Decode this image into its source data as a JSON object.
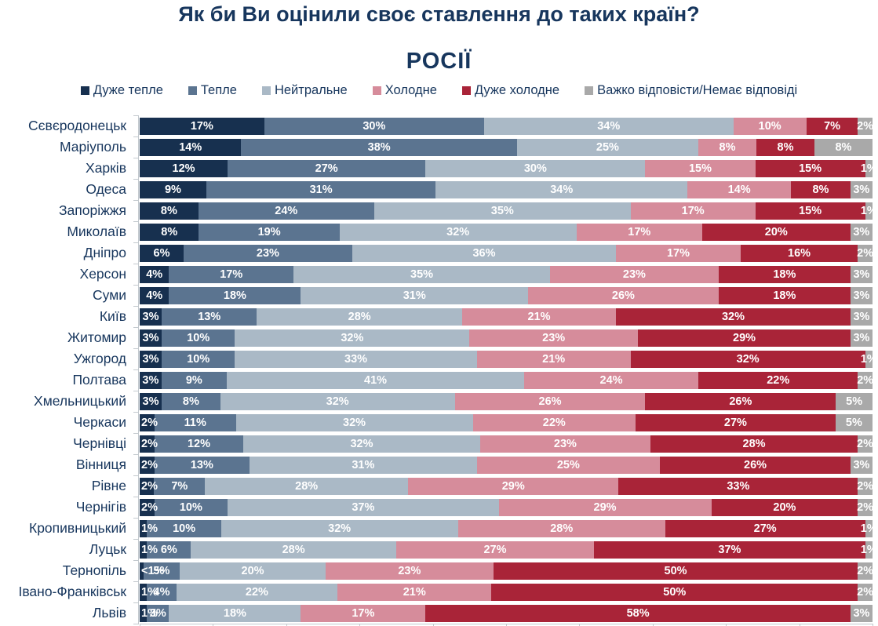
{
  "title": "Як би Ви оцінили своє ставлення до таких країн?",
  "subtitle": "РОСІЇ",
  "colors": {
    "title_text": "#17365d",
    "axis": "#c3c9ce",
    "bar_value_text": "#ffffff"
  },
  "chart_data": {
    "type": "bar",
    "orientation": "horizontal-stacked",
    "value_unit": "%",
    "xlim": [
      0,
      100
    ],
    "legend_position": "top",
    "grid": false,
    "categories": [
      "Сєвєродонецьк",
      "Маріуполь",
      "Харків",
      "Одеса",
      "Запоріжжя",
      "Миколаїв",
      "Дніпро",
      "Херсон",
      "Суми",
      "Київ",
      "Житомир",
      "Ужгород",
      "Полтава",
      "Хмельницький",
      "Черкаси",
      "Чернівці",
      "Вінниця",
      "Рівне",
      "Чернігів",
      "Кропивницький",
      "Луцьк",
      "Тернопіль",
      "Івано-Франківськ",
      "Львів"
    ],
    "series": [
      {
        "name": "Дуже тепле",
        "color": "#17304f",
        "values": [
          17,
          14,
          12,
          9,
          8,
          8,
          6,
          4,
          4,
          3,
          3,
          3,
          3,
          3,
          2,
          2,
          2,
          2,
          2,
          1,
          1,
          0.5,
          1,
          1
        ],
        "labels": [
          "17%",
          "14%",
          "12%",
          "9%",
          "8%",
          "8%",
          "6%",
          "4%",
          "4%",
          "3%",
          "3%",
          "3%",
          "3%",
          "3%",
          "2%",
          "2%",
          "2%",
          "2%",
          "2%",
          "1%",
          "1%",
          "<1%",
          "1%",
          "1%"
        ]
      },
      {
        "name": "Тепле",
        "color": "#5b7490",
        "values": [
          30,
          38,
          27,
          31,
          24,
          19,
          23,
          17,
          18,
          13,
          10,
          10,
          9,
          8,
          11,
          12,
          13,
          7,
          10,
          10,
          6,
          5,
          4,
          3
        ],
        "labels": [
          "30%",
          "38%",
          "27%",
          "31%",
          "24%",
          "19%",
          "23%",
          "17%",
          "18%",
          "13%",
          "10%",
          "10%",
          "9%",
          "8%",
          "11%",
          "12%",
          "13%",
          "7%",
          "10%",
          "10%",
          "6%",
          "5%",
          "4%",
          "3%"
        ]
      },
      {
        "name": "Нейтральне",
        "color": "#aab9c6",
        "values": [
          34,
          25,
          30,
          34,
          35,
          32,
          36,
          35,
          31,
          28,
          32,
          33,
          41,
          32,
          32,
          32,
          31,
          28,
          37,
          32,
          28,
          20,
          22,
          18
        ],
        "labels": [
          "34%",
          "25%",
          "30%",
          "34%",
          "35%",
          "32%",
          "36%",
          "35%",
          "31%",
          "28%",
          "32%",
          "33%",
          "41%",
          "32%",
          "32%",
          "32%",
          "31%",
          "28%",
          "37%",
          "32%",
          "28%",
          "20%",
          "22%",
          "18%"
        ]
      },
      {
        "name": "Холодне",
        "color": "#d68c9b",
        "values": [
          10,
          8,
          15,
          14,
          17,
          17,
          17,
          23,
          26,
          21,
          23,
          21,
          24,
          26,
          22,
          23,
          25,
          29,
          29,
          28,
          27,
          23,
          21,
          17
        ],
        "labels": [
          "10%",
          "8%",
          "15%",
          "14%",
          "17%",
          "17%",
          "17%",
          "23%",
          "26%",
          "21%",
          "23%",
          "21%",
          "24%",
          "26%",
          "22%",
          "23%",
          "25%",
          "29%",
          "29%",
          "28%",
          "27%",
          "23%",
          "21%",
          "17%"
        ]
      },
      {
        "name": "Дуже холодне",
        "color": "#a92438",
        "values": [
          7,
          8,
          15,
          8,
          15,
          20,
          16,
          18,
          18,
          32,
          29,
          32,
          22,
          26,
          27,
          28,
          26,
          33,
          20,
          27,
          37,
          50,
          50,
          58
        ],
        "labels": [
          "7%",
          "8%",
          "15%",
          "8%",
          "15%",
          "20%",
          "16%",
          "18%",
          "18%",
          "32%",
          "29%",
          "32%",
          "22%",
          "26%",
          "27%",
          "28%",
          "26%",
          "33%",
          "20%",
          "27%",
          "37%",
          "50%",
          "50%",
          "58%"
        ]
      },
      {
        "name": "Важко відповісти/Немає відповіді",
        "color": "#a9a9a9",
        "values": [
          2,
          8,
          1,
          3,
          1,
          3,
          2,
          3,
          3,
          3,
          3,
          1,
          2,
          5,
          5,
          2,
          3,
          2,
          2,
          1,
          1,
          2,
          2,
          3
        ],
        "labels": [
          "2%",
          "8%",
          "1%",
          "3%",
          "1%",
          "3%",
          "2%",
          "3%",
          "3%",
          "3%",
          "3%",
          "1%",
          "2%",
          "5%",
          "5%",
          "2%",
          "3%",
          "2%",
          "2%",
          "1%",
          "1%",
          "2%",
          "2%",
          "3%"
        ]
      }
    ]
  }
}
